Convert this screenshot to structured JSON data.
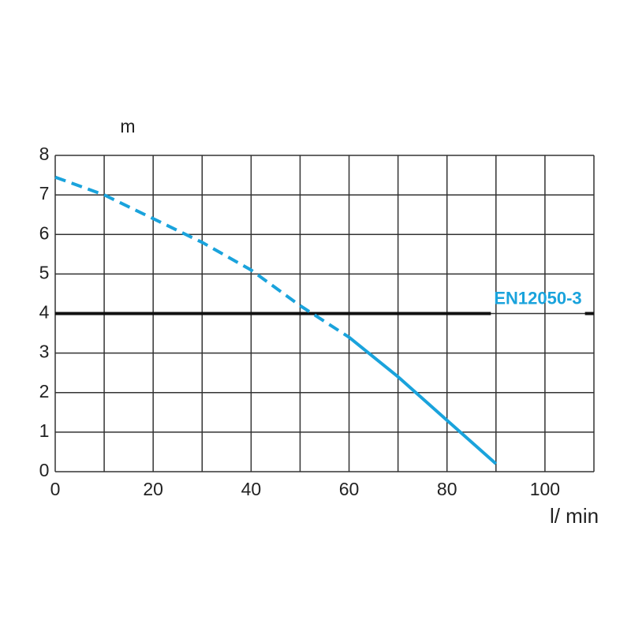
{
  "chart_data": {
    "type": "line",
    "ylabel": "m",
    "xlabel": "l/ min",
    "xlim": [
      0,
      110
    ],
    "ylim": [
      0,
      8
    ],
    "xticks": [
      0,
      20,
      40,
      60,
      80,
      100
    ],
    "xminor": [
      10,
      30,
      50,
      70,
      90,
      110
    ],
    "yticks": [
      0,
      1,
      2,
      3,
      4,
      5,
      6,
      7,
      8
    ],
    "grid": true,
    "series": [
      {
        "color": "#1aa3dc",
        "dashed": true,
        "x": [
          0,
          10,
          20,
          30,
          40,
          50,
          60
        ],
        "values": [
          7.45,
          7.0,
          6.4,
          5.8,
          5.1,
          4.2,
          3.4
        ]
      },
      {
        "color": "#1aa3dc",
        "dashed": false,
        "x": [
          60,
          70,
          80,
          90
        ],
        "values": [
          3.4,
          2.4,
          1.3,
          0.2
        ]
      }
    ],
    "hline": {
      "value": 4,
      "label": "EN12050-3",
      "color": "#111111",
      "label_color": "#1aa3dc"
    }
  }
}
